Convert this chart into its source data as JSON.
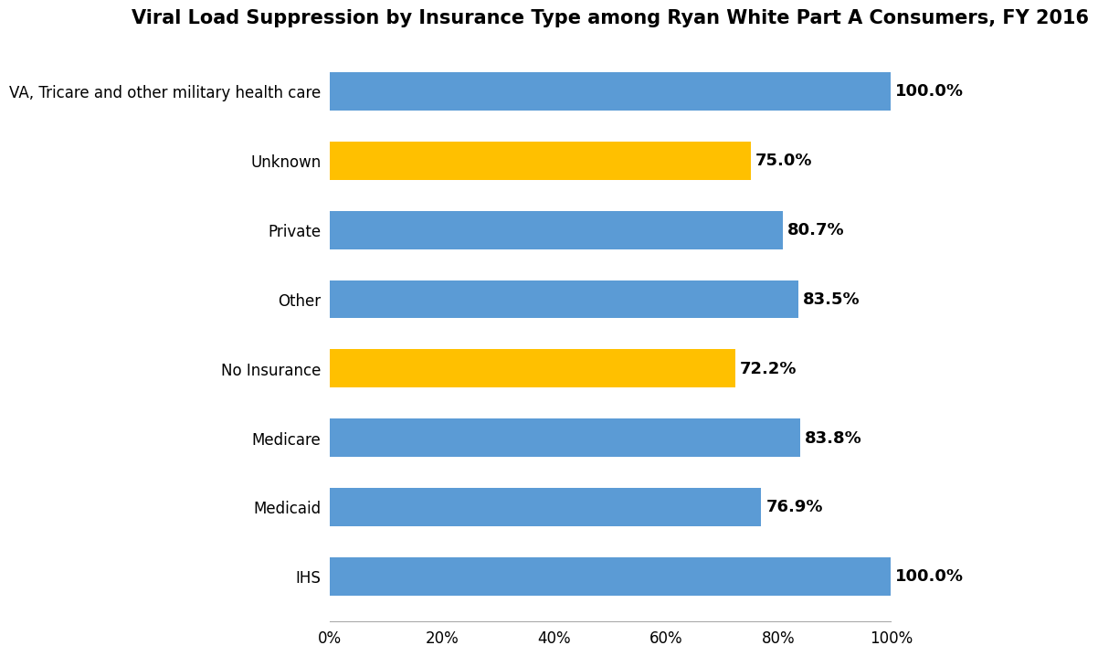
{
  "title": "Viral Load Suppression by Insurance Type among Ryan White Part A Consumers, FY 2016",
  "categories_top_to_bottom": [
    "VA, Tricare and other military health care",
    "Unknown",
    "Private",
    "Other",
    "No Insurance",
    "Medicare",
    "Medicaid",
    "IHS"
  ],
  "values_top_to_bottom": [
    100.0,
    75.0,
    80.7,
    83.5,
    72.2,
    83.8,
    76.9,
    100.0
  ],
  "colors_top_to_bottom": [
    "#5B9BD5",
    "#FFC000",
    "#5B9BD5",
    "#5B9BD5",
    "#FFC000",
    "#5B9BD5",
    "#5B9BD5",
    "#5B9BD5"
  ],
  "labels_top_to_bottom": [
    "100.0%",
    "75.0%",
    "80.7%",
    "83.5%",
    "72.2%",
    "83.8%",
    "76.9%",
    "100.0%"
  ],
  "xlim": [
    0,
    100
  ],
  "xticks": [
    0,
    20,
    40,
    60,
    80,
    100
  ],
  "xtick_labels": [
    "0%",
    "20%",
    "40%",
    "60%",
    "80%",
    "100%"
  ],
  "title_fontsize": 15,
  "label_fontsize": 13,
  "tick_fontsize": 12,
  "bar_height": 0.55,
  "background_color": "#FFFFFF"
}
